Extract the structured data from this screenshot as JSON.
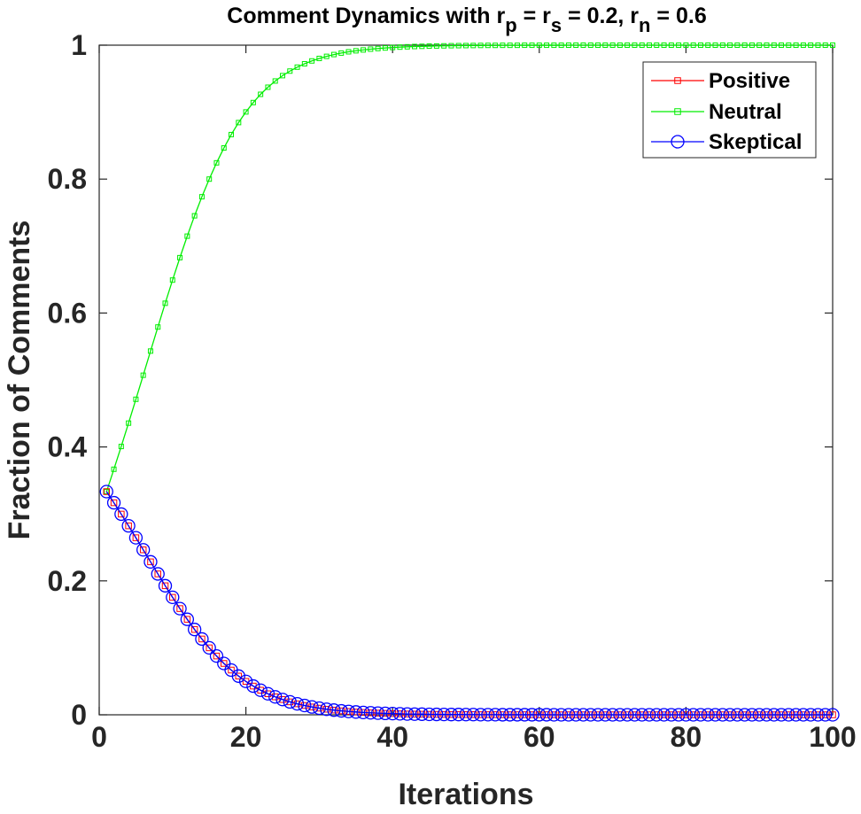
{
  "chart_data": {
    "type": "line",
    "title": {
      "prefix": "Comment Dynamics with r",
      "sub_p": "p",
      "mid": " = r",
      "sub_s": "s",
      "mid2": " = 0.2, r",
      "sub_n": "n",
      "suffix": " = 0.6"
    },
    "xlabel": "Iterations",
    "ylabel": "Fraction of Comments",
    "xlim": [
      0,
      100
    ],
    "ylim": [
      0,
      1
    ],
    "xticks": [
      0,
      20,
      40,
      60,
      80,
      100
    ],
    "xtick_labels": [
      "0",
      "20",
      "40",
      "60",
      "80",
      "100"
    ],
    "yticks": [
      0,
      0.2,
      0.4,
      0.6,
      0.8,
      1
    ],
    "ytick_labels": [
      "0",
      "0.2",
      "0.4",
      "0.6",
      "0.8",
      "1"
    ],
    "grid": false,
    "legend_position": "top-right",
    "x": [
      1,
      2,
      3,
      4,
      5,
      6,
      7,
      8,
      9,
      10,
      11,
      12,
      13,
      14,
      15,
      16,
      17,
      18,
      19,
      20,
      21,
      22,
      23,
      24,
      25,
      26,
      27,
      28,
      29,
      30,
      31,
      32,
      33,
      34,
      35,
      36,
      37,
      38,
      39,
      40,
      41,
      42,
      43,
      44,
      45,
      46,
      47,
      48,
      49,
      50,
      51,
      52,
      53,
      54,
      55,
      56,
      57,
      58,
      59,
      60,
      61,
      62,
      63,
      64,
      65,
      66,
      67,
      68,
      69,
      70,
      71,
      72,
      73,
      74,
      75,
      76,
      77,
      78,
      79,
      80,
      81,
      82,
      83,
      84,
      85,
      86,
      87,
      88,
      89,
      90,
      91,
      92,
      93,
      94,
      95,
      96,
      97,
      98,
      99,
      100
    ],
    "series": [
      {
        "name": "Positive",
        "color": "#ff0000",
        "marker": "square",
        "values": [
          0.3333,
          0.3167,
          0.2997,
          0.2822,
          0.2644,
          0.2464,
          0.2284,
          0.2104,
          0.1927,
          0.1754,
          0.1586,
          0.1426,
          0.1274,
          0.1132,
          0.1,
          0.0878,
          0.0767,
          0.0668,
          0.0578,
          0.0499,
          0.0429,
          0.0367,
          0.0314,
          0.0268,
          0.0228,
          0.0193,
          0.0164,
          0.0139,
          0.0117,
          0.0099,
          0.0083,
          0.007,
          0.0059,
          0.005,
          0.0042,
          0.0035,
          0.003,
          0.0025,
          0.0021,
          0.0018,
          0.0015,
          0.0012,
          0.001,
          0.0009,
          0.0007,
          0.0006,
          0.0005,
          0.0004,
          0.0004,
          0.0003,
          0.0003,
          0.0002,
          0.0002,
          0.0002,
          0.0001,
          0.0001,
          0.0001,
          0.0001,
          0.0001,
          0.0001,
          0.0001,
          0.0,
          0.0,
          0.0,
          0.0,
          0.0,
          0.0,
          0.0,
          0.0,
          0.0,
          0.0,
          0.0,
          0.0,
          0.0,
          0.0,
          0.0,
          0.0,
          0.0,
          0.0,
          0.0,
          0.0,
          0.0,
          0.0,
          0.0,
          0.0,
          0.0,
          0.0,
          0.0,
          0.0,
          0.0,
          0.0,
          0.0,
          0.0,
          0.0,
          0.0,
          0.0,
          0.0,
          0.0,
          0.0,
          0.0
        ]
      },
      {
        "name": "Neutral",
        "color": "#00ee00",
        "marker": "square-small",
        "values": [
          0.3333,
          0.3667,
          0.4007,
          0.4356,
          0.4712,
          0.5071,
          0.5432,
          0.5791,
          0.6146,
          0.6492,
          0.6827,
          0.7148,
          0.7452,
          0.7736,
          0.8,
          0.8243,
          0.8465,
          0.8665,
          0.8844,
          0.9003,
          0.9143,
          0.9266,
          0.9372,
          0.9465,
          0.9545,
          0.9613,
          0.9672,
          0.9722,
          0.9765,
          0.9802,
          0.9833,
          0.986,
          0.9882,
          0.9901,
          0.9916,
          0.9929,
          0.9941,
          0.995,
          0.9958,
          0.9965,
          0.9971,
          0.9976,
          0.998,
          0.9983,
          0.9986,
          0.9988,
          0.999,
          0.9992,
          0.9993,
          0.9994,
          0.9995,
          0.9996,
          0.9997,
          0.9997,
          0.9998,
          0.9998,
          0.9998,
          0.9999,
          0.9999,
          0.9999,
          0.9999,
          0.9999,
          0.9999,
          1.0,
          1.0,
          1.0,
          1.0,
          1.0,
          1.0,
          1.0,
          1.0,
          1.0,
          1.0,
          1.0,
          1.0,
          1.0,
          1.0,
          1.0,
          1.0,
          1.0,
          1.0,
          1.0,
          1.0,
          1.0,
          1.0,
          1.0,
          1.0,
          1.0,
          1.0,
          1.0,
          1.0,
          1.0,
          1.0,
          1.0,
          1.0,
          1.0,
          1.0,
          1.0,
          1.0,
          1.0
        ]
      },
      {
        "name": "Skeptical",
        "color": "#0000ff",
        "marker": "circle",
        "values": [
          0.3333,
          0.3167,
          0.2997,
          0.2822,
          0.2644,
          0.2464,
          0.2284,
          0.2104,
          0.1927,
          0.1754,
          0.1586,
          0.1426,
          0.1274,
          0.1132,
          0.1,
          0.0878,
          0.0767,
          0.0668,
          0.0578,
          0.0499,
          0.0429,
          0.0367,
          0.0314,
          0.0268,
          0.0228,
          0.0193,
          0.0164,
          0.0139,
          0.0117,
          0.0099,
          0.0083,
          0.007,
          0.0059,
          0.005,
          0.0042,
          0.0035,
          0.003,
          0.0025,
          0.0021,
          0.0018,
          0.0015,
          0.0012,
          0.001,
          0.0009,
          0.0007,
          0.0006,
          0.0005,
          0.0004,
          0.0004,
          0.0003,
          0.0003,
          0.0002,
          0.0002,
          0.0002,
          0.0001,
          0.0001,
          0.0001,
          0.0001,
          0.0001,
          0.0001,
          0.0001,
          0.0,
          0.0,
          0.0,
          0.0,
          0.0,
          0.0,
          0.0,
          0.0,
          0.0,
          0.0,
          0.0,
          0.0,
          0.0,
          0.0,
          0.0,
          0.0,
          0.0,
          0.0,
          0.0,
          0.0,
          0.0,
          0.0,
          0.0,
          0.0,
          0.0,
          0.0,
          0.0,
          0.0,
          0.0,
          0.0,
          0.0,
          0.0,
          0.0,
          0.0,
          0.0,
          0.0,
          0.0,
          0.0,
          0.0
        ]
      }
    ]
  }
}
